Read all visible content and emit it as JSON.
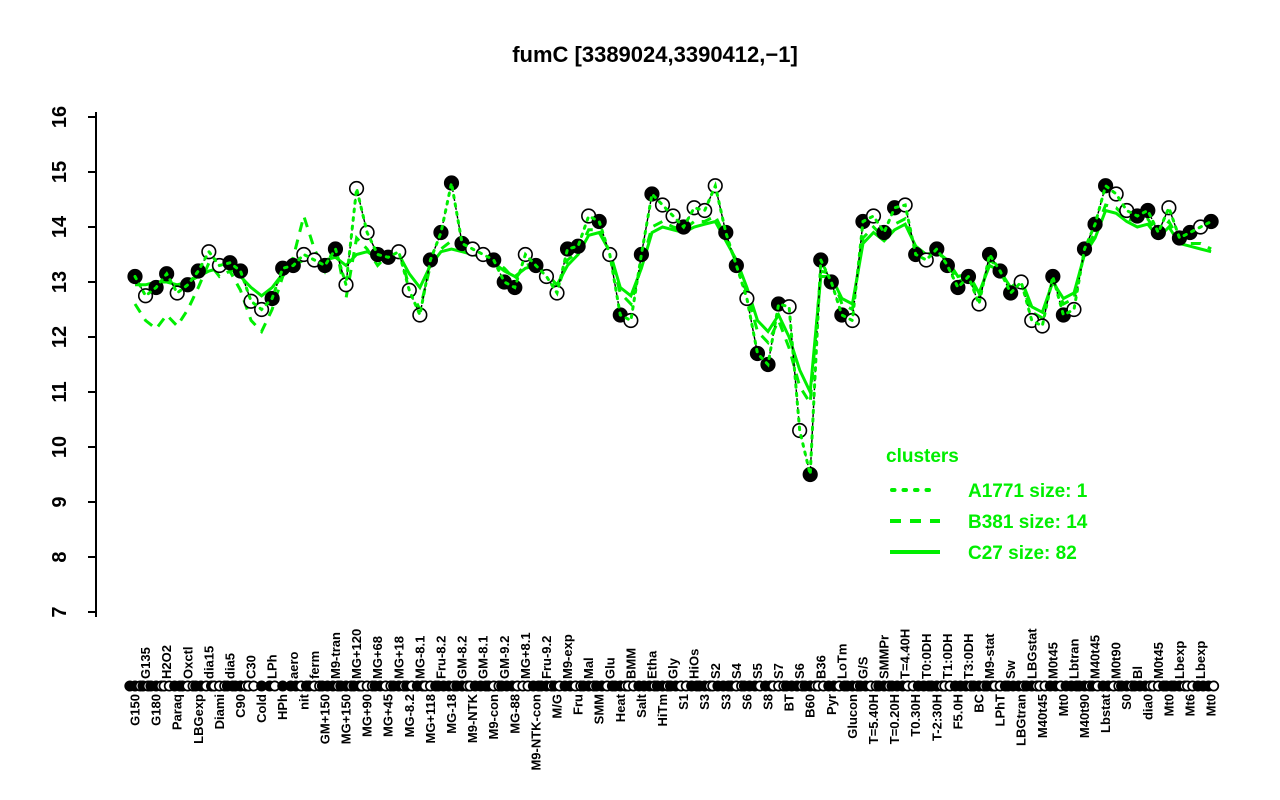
{
  "title": "fumC [3389024,3390412,−1]",
  "colors": {
    "cluster_green": "#00EE00",
    "point_black": "#000000",
    "point_white": "#FFFFFF",
    "axis": "#000000",
    "background": "#FFFFFF"
  },
  "legend": {
    "header": "clusters",
    "items": [
      {
        "label": "A1771 size: 1",
        "style": "dotted"
      },
      {
        "label": "B381 size: 14",
        "style": "dashed"
      },
      {
        "label": "C27 size: 82",
        "style": "solid"
      }
    ],
    "position": "right-center"
  },
  "chart_data": {
    "type": "line",
    "title": "fumC [3389024,3390412,−1]",
    "ylim": [
      7,
      16
    ],
    "y_axis": {
      "ticks": [
        7,
        8,
        9,
        10,
        11,
        12,
        13,
        14,
        15,
        16
      ]
    },
    "grid": false,
    "categories": [
      {
        "l": "G150",
        "r": "b"
      },
      {
        "l": "G135",
        "r": "t"
      },
      {
        "l": "G180",
        "r": "b"
      },
      {
        "l": "H2O2",
        "r": "t"
      },
      {
        "l": "Paraq",
        "r": "b"
      },
      {
        "l": "Oxctl",
        "r": "t"
      },
      {
        "l": "LBGexp",
        "r": "b"
      },
      {
        "l": "dia15",
        "r": "t"
      },
      {
        "l": "Diami",
        "r": "b"
      },
      {
        "l": "dia5",
        "r": "t"
      },
      {
        "l": "C90",
        "r": "b"
      },
      {
        "l": "C30",
        "r": "t"
      },
      {
        "l": "Cold",
        "r": "b"
      },
      {
        "l": "LPh",
        "r": "t"
      },
      {
        "l": "HPh",
        "r": "b"
      },
      {
        "l": "aero",
        "r": "t"
      },
      {
        "l": "nit",
        "r": "b"
      },
      {
        "l": "ferm",
        "r": "t"
      },
      {
        "l": "GM+150",
        "r": "b"
      },
      {
        "l": "M9-tran",
        "r": "t"
      },
      {
        "l": "MG+150",
        "r": "b"
      },
      {
        "l": "MG+120",
        "r": "t"
      },
      {
        "l": "MG+90",
        "r": "b"
      },
      {
        "l": "MG+68",
        "r": "t"
      },
      {
        "l": "MG+45",
        "r": "b"
      },
      {
        "l": "MG+18",
        "r": "t"
      },
      {
        "l": "MG-8.2",
        "r": "b"
      },
      {
        "l": "MG-8.1",
        "r": "t"
      },
      {
        "l": "MG+118",
        "r": "b"
      },
      {
        "l": "Fru-8.2",
        "r": "t"
      },
      {
        "l": "MG-18",
        "r": "b"
      },
      {
        "l": "GM-8.2",
        "r": "t"
      },
      {
        "l": "M9-NTK",
        "r": "b"
      },
      {
        "l": "GM-8.1",
        "r": "t"
      },
      {
        "l": "M9-con",
        "r": "b"
      },
      {
        "l": "GM-9.2",
        "r": "t"
      },
      {
        "l": "MG-88",
        "r": "b"
      },
      {
        "l": "MG+8.1",
        "r": "t"
      },
      {
        "l": "M9-NTK-con",
        "r": "b"
      },
      {
        "l": "Fru-9.2",
        "r": "t"
      },
      {
        "l": "M/G",
        "r": "b"
      },
      {
        "l": "M9-exp",
        "r": "t"
      },
      {
        "l": "Fru",
        "r": "b"
      },
      {
        "l": "Mal",
        "r": "t"
      },
      {
        "l": "SMM",
        "r": "b"
      },
      {
        "l": "Glu",
        "r": "t"
      },
      {
        "l": "Heat",
        "r": "b"
      },
      {
        "l": "BMM",
        "r": "t"
      },
      {
        "l": "Salt",
        "r": "b"
      },
      {
        "l": "Etha",
        "r": "t"
      },
      {
        "l": "HiTm",
        "r": "b"
      },
      {
        "l": "Gly",
        "r": "t"
      },
      {
        "l": "S1",
        "r": "b"
      },
      {
        "l": "HiOs",
        "r": "t"
      },
      {
        "l": "S3",
        "r": "b"
      },
      {
        "l": "S2",
        "r": "t"
      },
      {
        "l": "S3",
        "r": "b"
      },
      {
        "l": "S4",
        "r": "t"
      },
      {
        "l": "S6",
        "r": "b"
      },
      {
        "l": "S5",
        "r": "t"
      },
      {
        "l": "S8",
        "r": "b"
      },
      {
        "l": "S7",
        "r": "t"
      },
      {
        "l": "BT",
        "r": "b"
      },
      {
        "l": "S6",
        "r": "t"
      },
      {
        "l": "B60",
        "r": "b"
      },
      {
        "l": "B36",
        "r": "t"
      },
      {
        "l": "Pyr",
        "r": "b"
      },
      {
        "l": "LoTm",
        "r": "t"
      },
      {
        "l": "Glucon",
        "r": "b"
      },
      {
        "l": "G/S",
        "r": "t"
      },
      {
        "l": "T=5.40H",
        "r": "b"
      },
      {
        "l": "SMMPr",
        "r": "t"
      },
      {
        "l": "T=0.20H",
        "r": "b"
      },
      {
        "l": "T=4.40H",
        "r": "t"
      },
      {
        "l": "T0.30H",
        "r": "b"
      },
      {
        "l": "T0:0DH",
        "r": "t"
      },
      {
        "l": "T-2:30H",
        "r": "b"
      },
      {
        "l": "T1:0DH",
        "r": "t"
      },
      {
        "l": "F5.0H",
        "r": "b"
      },
      {
        "l": "T3:0DH",
        "r": "t"
      },
      {
        "l": "BC",
        "r": "b"
      },
      {
        "l": "M9-stat",
        "r": "t"
      },
      {
        "l": "LPhT",
        "r": "b"
      },
      {
        "l": "Sw",
        "r": "t"
      },
      {
        "l": "LBGtran",
        "r": "b"
      },
      {
        "l": "LBGstat",
        "r": "t"
      },
      {
        "l": "M40t45",
        "r": "b"
      },
      {
        "l": "M0t45",
        "r": "t"
      },
      {
        "l": "Mt0",
        "r": "b"
      },
      {
        "l": "Lbtran",
        "r": "t"
      },
      {
        "l": "M40t90",
        "r": "b"
      },
      {
        "l": "M40t45",
        "r": "t"
      },
      {
        "l": "Lbstat",
        "r": "b"
      },
      {
        "l": "M0t90",
        "r": "t"
      },
      {
        "l": "S0",
        "r": "b"
      },
      {
        "l": "Bl",
        "r": "t"
      },
      {
        "l": "dia0",
        "r": "b"
      },
      {
        "l": "M0t45",
        "r": "t"
      },
      {
        "l": "Mt0",
        "r": "b"
      },
      {
        "l": "Lbexp",
        "r": "t"
      },
      {
        "l": "Mt6",
        "r": "b"
      },
      {
        "l": "Lbexp",
        "r": "t"
      },
      {
        "l": "Mt0",
        "r": "b"
      }
    ],
    "series": [
      {
        "name": "gene",
        "draw": "points",
        "values": [
          13.1,
          12.75,
          12.9,
          13.15,
          12.8,
          12.95,
          13.2,
          13.55,
          13.3,
          13.35,
          13.2,
          12.65,
          12.5,
          12.7,
          13.25,
          13.3,
          13.5,
          13.4,
          13.3,
          13.6,
          12.95,
          14.7,
          13.9,
          13.5,
          13.45,
          13.55,
          12.85,
          12.4,
          13.4,
          13.9,
          14.8,
          13.7,
          13.6,
          13.5,
          13.4,
          13.0,
          12.9,
          13.5,
          13.3,
          13.1,
          12.8,
          13.6,
          13.65,
          14.2,
          14.1,
          13.5,
          12.4,
          12.3,
          13.5,
          14.6,
          14.4,
          14.2,
          14.0,
          14.35,
          14.3,
          14.75,
          13.9,
          13.3,
          12.7,
          11.7,
          11.5,
          12.6,
          12.55,
          10.3,
          9.5,
          13.4,
          13.0,
          12.4,
          12.3,
          14.1,
          14.2,
          13.9,
          14.35,
          14.4,
          13.5,
          13.4,
          13.6,
          13.3,
          12.9,
          13.1,
          12.6,
          13.5,
          13.2,
          12.8,
          13.0,
          12.3,
          12.2,
          13.1,
          12.4,
          12.5,
          13.6,
          14.05,
          14.75,
          14.6,
          14.3,
          14.2,
          14.3,
          13.9,
          14.35,
          13.8,
          13.9,
          14.0,
          14.1
        ],
        "fills": [
          "f",
          "o",
          "f",
          "f",
          "o",
          "f",
          "f",
          "o",
          "o",
          "f",
          "f",
          "o",
          "o",
          "f",
          "f",
          "f",
          "o",
          "o",
          "f",
          "f",
          "o",
          "o",
          "o",
          "f",
          "f",
          "o",
          "o",
          "o",
          "f",
          "f",
          "f",
          "f",
          "o",
          "o",
          "f",
          "f",
          "f",
          "o",
          "f",
          "o",
          "o",
          "f",
          "f",
          "o",
          "f",
          "o",
          "f",
          "o",
          "f",
          "f",
          "o",
          "o",
          "f",
          "o",
          "o",
          "o",
          "f",
          "f",
          "o",
          "f",
          "f",
          "f",
          "o",
          "o",
          "f",
          "f",
          "f",
          "f",
          "o",
          "f",
          "o",
          "f",
          "f",
          "o",
          "f",
          "o",
          "f",
          "f",
          "f",
          "f",
          "o",
          "f",
          "f",
          "f",
          "o",
          "o",
          "o",
          "f",
          "f",
          "o",
          "f",
          "f",
          "f",
          "o",
          "o",
          "f",
          "f",
          "f",
          "o",
          "f",
          "f",
          "o",
          "f"
        ]
      },
      {
        "name": "A1771",
        "size": 1,
        "style": "dotted",
        "follows": "gene"
      },
      {
        "name": "B381",
        "size": 14,
        "style": "dashed",
        "values": [
          12.6,
          12.3,
          12.15,
          12.4,
          12.2,
          12.5,
          12.9,
          13.35,
          13.1,
          13.2,
          12.85,
          12.3,
          12.1,
          12.5,
          13.1,
          13.45,
          14.2,
          13.6,
          13.2,
          13.7,
          12.7,
          13.8,
          13.6,
          13.3,
          13.5,
          13.6,
          12.9,
          12.5,
          13.3,
          13.6,
          13.75,
          13.6,
          13.5,
          13.5,
          13.4,
          13.25,
          13.05,
          13.3,
          13.35,
          13.1,
          12.85,
          13.4,
          13.55,
          13.95,
          13.95,
          13.5,
          12.8,
          12.6,
          13.3,
          14.0,
          14.1,
          14.0,
          13.95,
          14.1,
          14.1,
          14.2,
          13.8,
          13.35,
          12.8,
          12.1,
          11.9,
          12.3,
          11.8,
          11.1,
          10.8,
          13.2,
          13.15,
          12.6,
          12.5,
          13.8,
          14.0,
          13.8,
          14.05,
          14.15,
          13.6,
          13.45,
          13.6,
          13.35,
          13.0,
          13.1,
          12.7,
          13.4,
          13.25,
          12.85,
          13.0,
          12.45,
          12.35,
          13.05,
          12.6,
          12.7,
          13.55,
          13.9,
          14.4,
          14.35,
          14.15,
          14.1,
          14.15,
          13.85,
          14.1,
          13.75,
          13.7,
          13.7,
          13.6
        ]
      },
      {
        "name": "C27",
        "size": 82,
        "style": "solid",
        "values": [
          12.95,
          12.95,
          13.0,
          13.0,
          12.95,
          13.0,
          13.1,
          13.2,
          13.25,
          13.25,
          13.1,
          12.9,
          12.75,
          12.9,
          13.15,
          13.3,
          13.4,
          13.4,
          13.4,
          13.45,
          13.3,
          13.5,
          13.55,
          13.45,
          13.45,
          13.5,
          13.15,
          12.9,
          13.3,
          13.55,
          13.6,
          13.55,
          13.5,
          13.45,
          13.35,
          13.2,
          13.1,
          13.25,
          13.3,
          13.15,
          12.95,
          13.3,
          13.5,
          13.85,
          13.9,
          13.55,
          12.9,
          12.75,
          13.25,
          13.9,
          14.0,
          13.95,
          13.9,
          14.0,
          14.05,
          14.1,
          13.75,
          13.4,
          12.9,
          12.3,
          12.1,
          12.4,
          12.0,
          11.4,
          11.0,
          13.1,
          13.1,
          12.7,
          12.6,
          13.7,
          13.9,
          13.75,
          13.95,
          14.05,
          13.65,
          13.5,
          13.55,
          13.4,
          13.1,
          13.15,
          12.8,
          13.3,
          13.2,
          12.9,
          13.05,
          12.55,
          12.45,
          13.0,
          12.7,
          12.8,
          13.5,
          13.8,
          14.3,
          14.25,
          14.1,
          14.0,
          14.05,
          13.8,
          14.0,
          13.7,
          13.65,
          13.6,
          13.55
        ]
      }
    ],
    "strip": [
      "ffo",
      "fo",
      "ffo",
      "oo",
      "ff",
      "foo",
      "ff",
      "of",
      "ooo",
      "ff",
      "ffo",
      "oo",
      "f",
      "fo",
      "f",
      "ff",
      "of",
      "foo",
      "ff",
      "fo",
      "ffo",
      "ff",
      "ooo",
      "ff",
      "oo",
      "ffo",
      "fo",
      "ff",
      "oof",
      "ff",
      "fo",
      "ffo",
      "of",
      "ff",
      "foo",
      "ff",
      "fo",
      "oo",
      "ff",
      "ffo",
      "fo",
      "ff",
      "oo",
      "ffo",
      "ff",
      "of",
      "ffo",
      "oo",
      "ff",
      "fo",
      "ffo",
      "ff",
      "oo",
      "ff",
      "ffo",
      "of",
      "ff",
      "foo",
      "ff",
      "fo",
      "ff",
      "ooo",
      "ff",
      "fo",
      "ffo",
      "oo",
      "ff",
      "of",
      "ffo",
      "ff",
      "oo",
      "ffo",
      "ff",
      "fo",
      "of",
      "ff",
      "ffo",
      "oo",
      "ff",
      "fo",
      "ffo",
      "ff",
      "oof",
      "ff",
      "fo",
      "ffo",
      "oo",
      "ff",
      "of",
      "ff",
      "ffo",
      "fo",
      "ff",
      "oo",
      "ffo",
      "ff",
      "fo",
      "oof",
      "ff",
      "ffo",
      "oo",
      "ff",
      "fo"
    ]
  }
}
